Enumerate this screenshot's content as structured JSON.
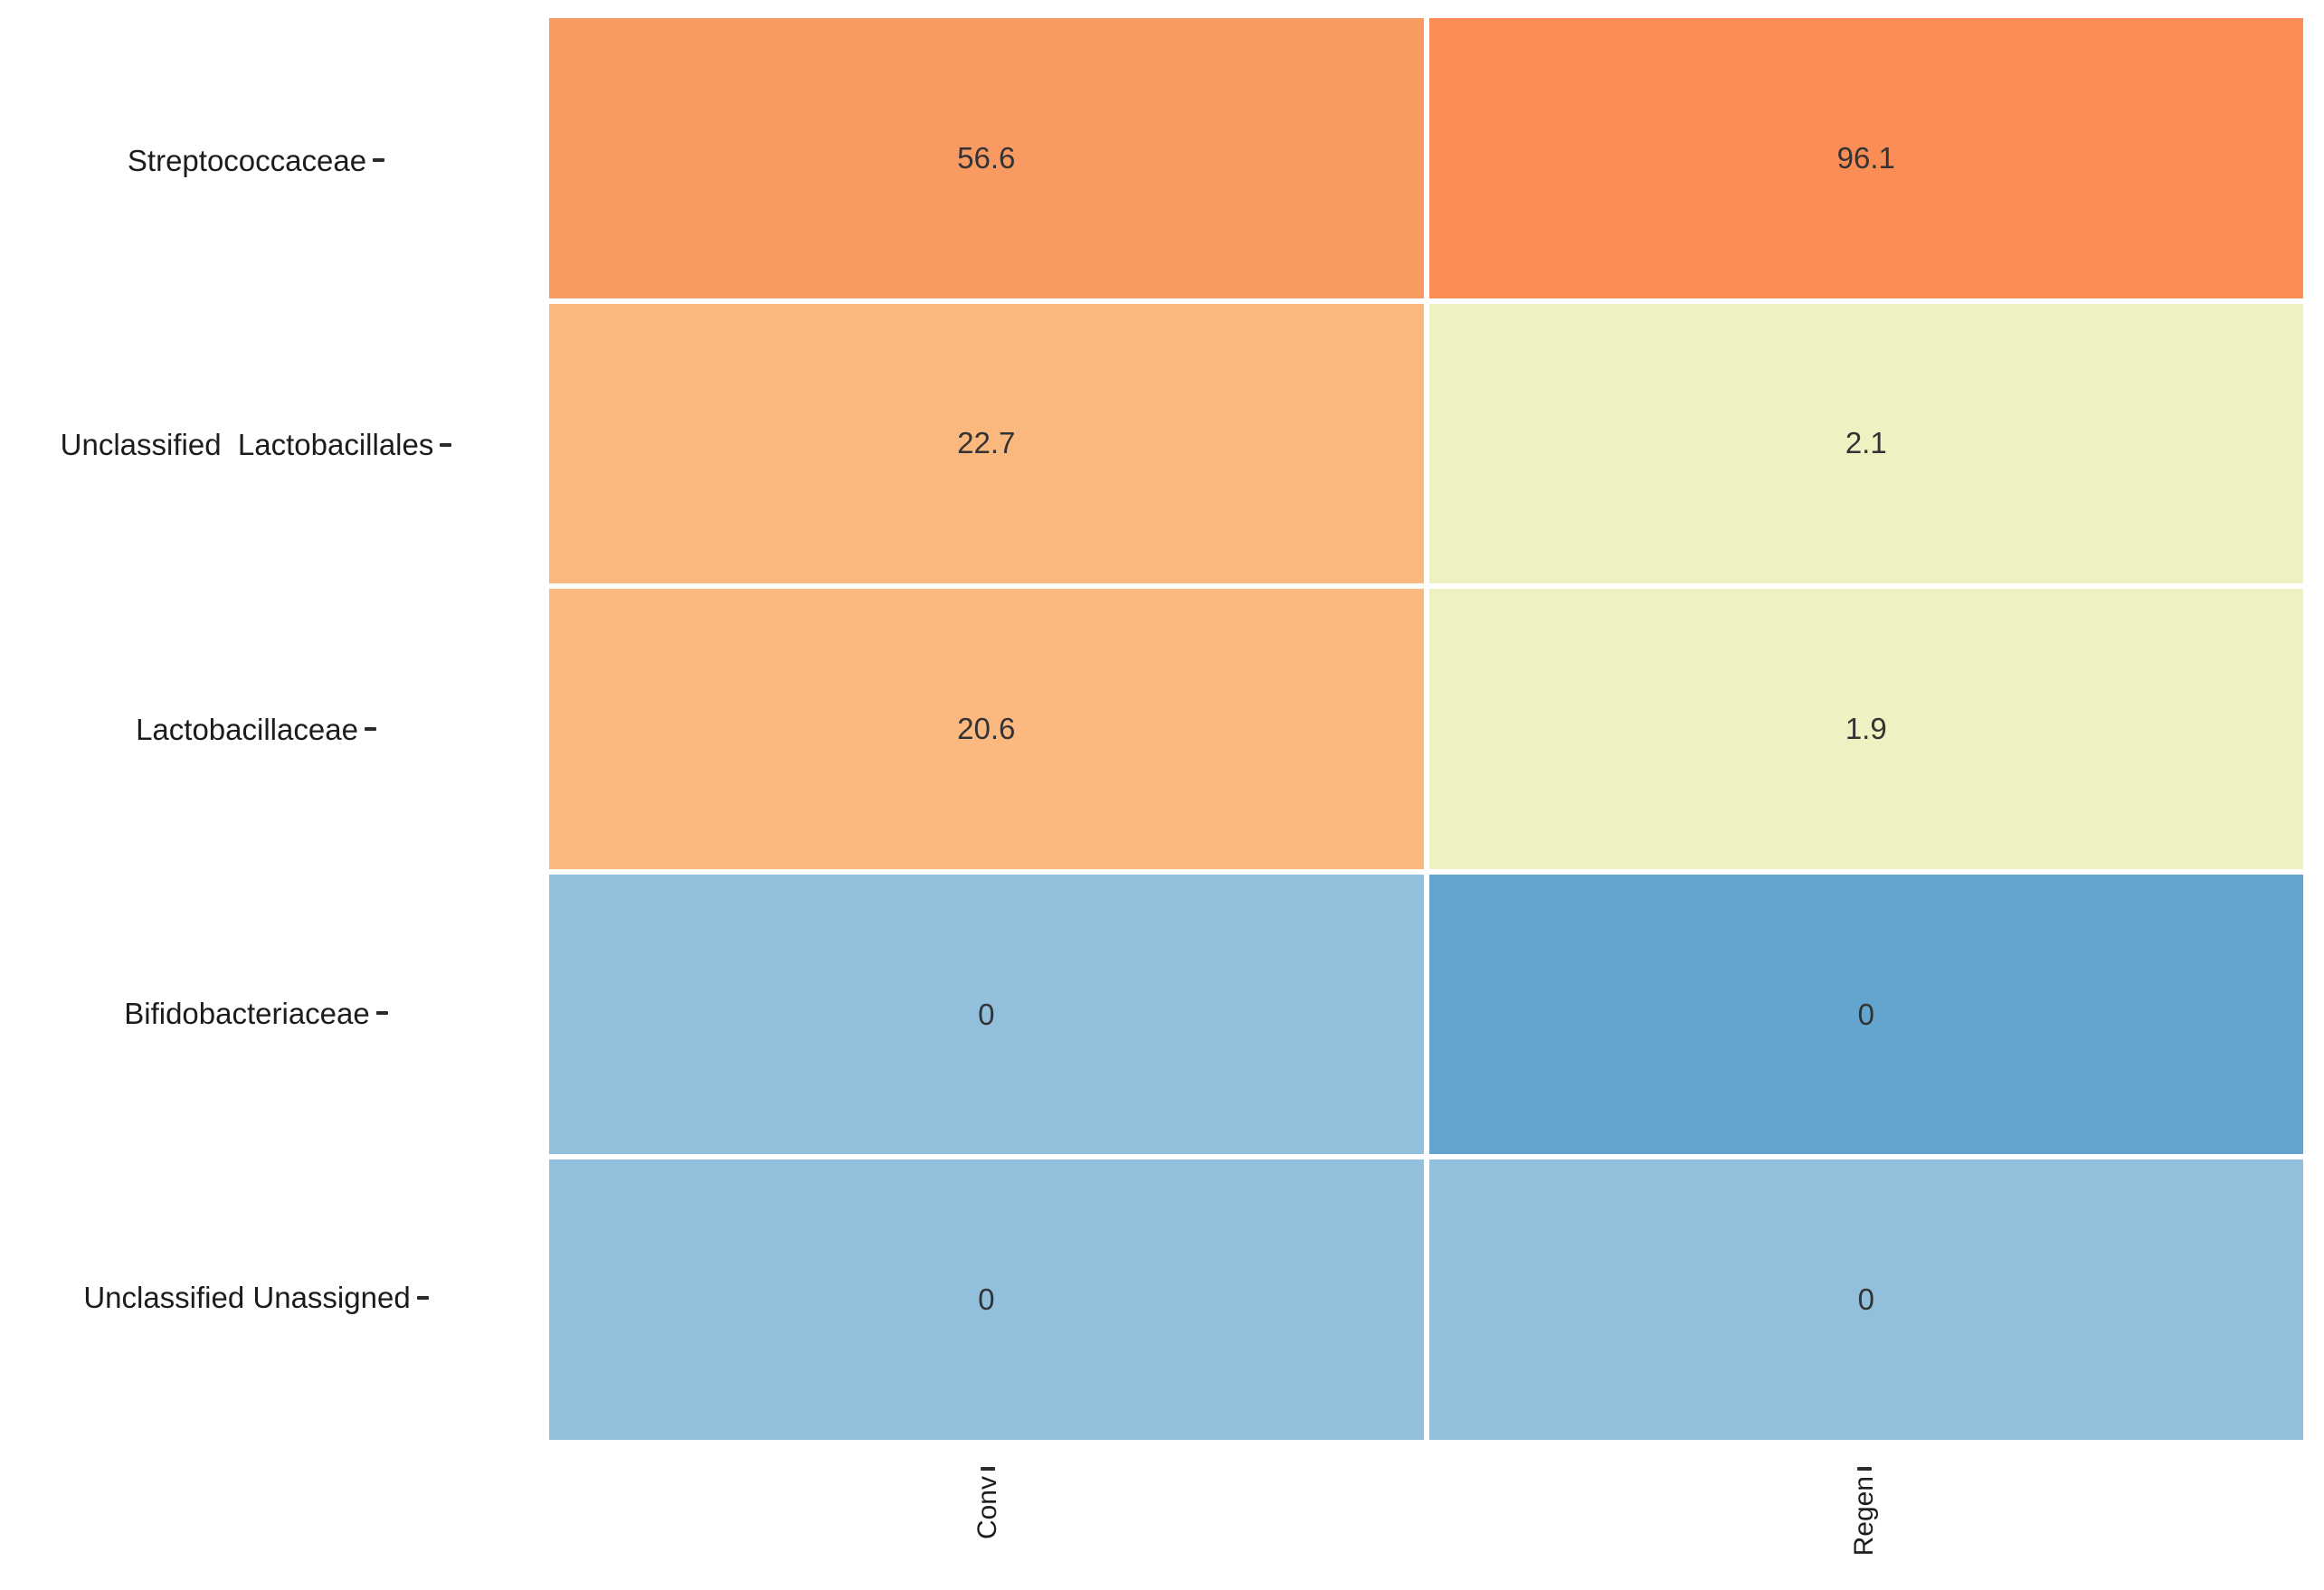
{
  "chart_data": {
    "type": "heatmap",
    "title": "",
    "xlabel": "",
    "ylabel": "",
    "legend": "none",
    "grid": "off",
    "x_tick_rotation": 90,
    "columns": [
      "Conv",
      "Regen"
    ],
    "rows": [
      "Streptococcaceae",
      "Unclassified  Lactobacillales",
      "Lactobacillaceae",
      "Bifidobacteriaceae",
      "Unclassified Unassigned"
    ],
    "values": [
      [
        56.6,
        96.1
      ],
      [
        22.7,
        2.1
      ],
      [
        20.6,
        1.9
      ],
      [
        0,
        0
      ],
      [
        0,
        0
      ]
    ],
    "value_labels": [
      [
        "56.6",
        "96.1"
      ],
      [
        "22.7",
        "2.1"
      ],
      [
        "20.6",
        "1.9"
      ],
      [
        "0",
        "0"
      ],
      [
        "0",
        "0"
      ]
    ],
    "cell_colors": [
      [
        "#FA9A63",
        "#F98D55"
      ],
      [
        "#FBB87E",
        "#EEF1C1"
      ],
      [
        "#FBB980",
        "#EEF1C1"
      ],
      [
        "#92BFDC",
        "#63A5CE"
      ],
      [
        "#92BFDC",
        "#92BFDC"
      ]
    ],
    "colors": {
      "background": "#FFFFFF",
      "cell_gap": "#FFFFFF",
      "text": "#333333",
      "axis_text": "#1C1C1C",
      "tick": "#2B2B2B"
    }
  }
}
